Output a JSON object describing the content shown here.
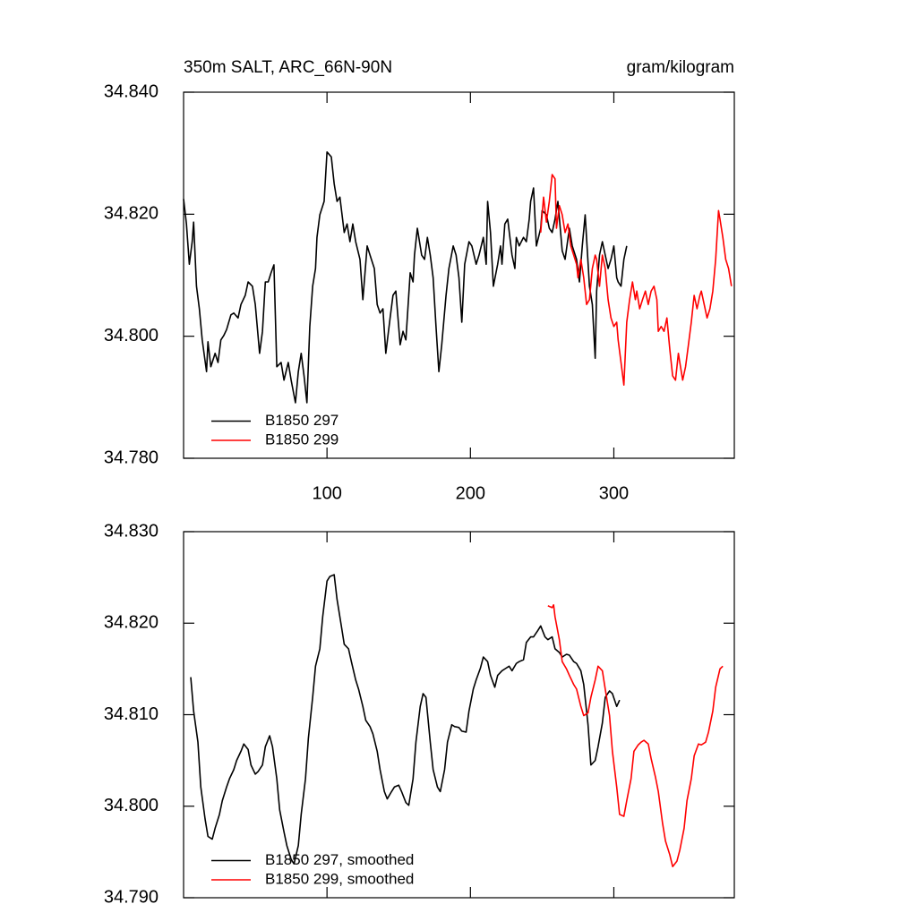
{
  "chart_data": [
    {
      "type": "line",
      "title": "350m SALT, ARC_66N-90N",
      "right_title": "gram/kilogram",
      "xlim": [
        0,
        384
      ],
      "xticks": [
        100,
        200,
        300
      ],
      "xtick_labels": true,
      "ylim": [
        34.78,
        34.84
      ],
      "yticks": [
        {
          "value": 34.78,
          "label": "34.780"
        },
        {
          "value": 34.8,
          "label": "34.800"
        },
        {
          "value": 34.82,
          "label": "34.820"
        },
        {
          "value": 34.84,
          "label": "34.840"
        }
      ],
      "legend": "lower left",
      "series": [
        {
          "name": "B1850 297",
          "color": "#000000",
          "x": [
            0,
            2,
            4,
            6,
            7,
            9,
            11,
            13,
            16,
            17,
            19,
            22,
            24,
            26,
            28,
            30,
            33,
            35,
            38,
            40,
            43,
            45,
            48,
            50,
            53,
            55,
            57,
            59,
            61,
            63,
            65,
            68,
            70,
            73,
            75,
            78,
            80,
            82,
            84,
            86,
            88,
            90,
            92,
            93,
            95,
            98,
            100,
            103,
            105,
            107,
            109,
            112,
            114,
            116,
            118,
            120,
            123,
            125,
            128,
            130,
            133,
            135,
            137,
            139,
            141,
            144,
            146,
            148,
            151,
            153,
            155,
            158,
            160,
            161,
            163,
            166,
            168,
            170,
            172,
            174,
            176,
            178,
            180,
            183,
            185,
            188,
            190,
            192,
            194,
            196,
            199,
            201,
            204,
            206,
            209,
            211,
            212,
            214,
            216,
            219,
            221,
            222,
            224,
            226,
            229,
            231,
            232,
            234,
            237,
            239,
            241,
            242,
            244,
            246,
            249,
            250,
            253,
            255,
            257,
            259,
            261,
            264,
            266,
            269,
            271,
            274,
            276,
            278,
            280,
            283,
            285,
            287,
            288,
            290,
            292,
            294,
            296,
            298,
            300,
            302,
            303,
            305,
            307,
            309
          ],
          "values": [
            34.8225,
            34.8184,
            34.8118,
            34.8155,
            34.8187,
            34.8082,
            34.8045,
            34.7994,
            34.7942,
            34.7991,
            34.795,
            34.7972,
            34.7957,
            34.7994,
            34.8001,
            34.8011,
            34.8035,
            34.8038,
            34.803,
            34.8052,
            34.8067,
            34.8089,
            34.8082,
            34.8052,
            34.7972,
            34.8008,
            34.8089,
            34.8089,
            34.8104,
            34.8117,
            34.795,
            34.7957,
            34.7928,
            34.7957,
            34.7928,
            34.7891,
            34.7942,
            34.7972,
            34.7935,
            34.7891,
            34.8016,
            34.8082,
            34.8111,
            34.8162,
            34.8199,
            34.8221,
            34.8302,
            34.8294,
            34.825,
            34.8221,
            34.8228,
            34.817,
            34.8184,
            34.8155,
            34.8184,
            34.8155,
            34.8126,
            34.806,
            34.8148,
            34.8133,
            34.8111,
            34.8052,
            34.8038,
            34.8045,
            34.7972,
            34.803,
            34.8067,
            34.8074,
            34.7986,
            34.8008,
            34.7994,
            34.8104,
            34.8089,
            34.8133,
            34.8177,
            34.8133,
            34.8126,
            34.8162,
            34.8133,
            34.8096,
            34.8016,
            34.7942,
            34.7986,
            34.8067,
            34.8111,
            34.8148,
            34.8133,
            34.8096,
            34.8023,
            34.8118,
            34.8155,
            34.8148,
            34.8118,
            34.8133,
            34.8162,
            34.8118,
            34.8221,
            34.817,
            34.8082,
            34.8118,
            34.8148,
            34.8118,
            34.8184,
            34.8192,
            34.8133,
            34.8111,
            34.8162,
            34.8148,
            34.8162,
            34.8155,
            34.8192,
            34.8221,
            34.8243,
            34.8148,
            34.8177,
            34.8206,
            34.8199,
            34.8177,
            34.817,
            34.8192,
            34.8221,
            34.814,
            34.8126,
            34.8177,
            34.8148,
            34.8126,
            34.8089,
            34.8148,
            34.8199,
            34.8082,
            34.8052,
            34.7964,
            34.8074,
            34.8133,
            34.8155,
            34.8133,
            34.8111,
            34.8126,
            34.8148,
            34.8096,
            34.8089,
            34.8082,
            34.8126,
            34.8148
          ]
        },
        {
          "name": "B1850 299",
          "color": "#ff0000",
          "x": [
            249,
            251,
            253,
            255,
            257,
            259,
            260,
            262,
            264,
            266,
            268,
            270,
            272,
            274,
            275,
            277,
            279,
            281,
            283,
            285,
            287,
            288,
            290,
            292,
            294,
            296,
            298,
            300,
            302,
            303,
            305,
            307,
            309,
            311,
            313,
            315,
            316,
            318,
            320,
            322,
            324,
            326,
            328,
            330,
            331,
            333,
            335,
            337,
            339,
            341,
            343,
            345,
            346,
            348,
            350,
            352,
            354,
            356,
            358,
            360,
            361,
            363,
            365,
            367,
            369,
            371,
            373,
            374,
            376,
            378,
            380,
            382
          ],
          "values": [
            34.817,
            34.8228,
            34.8187,
            34.8221,
            34.8265,
            34.8258,
            34.8177,
            34.8214,
            34.8199,
            34.817,
            34.8184,
            34.8148,
            34.8133,
            34.8118,
            34.8096,
            34.8126,
            34.8096,
            34.8052,
            34.806,
            34.8111,
            34.8133,
            34.8126,
            34.8082,
            34.8133,
            34.8111,
            34.806,
            34.803,
            34.8016,
            34.8023,
            34.7994,
            34.7957,
            34.792,
            34.8023,
            34.806,
            34.8089,
            34.806,
            34.8074,
            34.8045,
            34.806,
            34.8074,
            34.8052,
            34.8074,
            34.8082,
            34.806,
            34.8008,
            34.8016,
            34.8008,
            34.803,
            34.7979,
            34.7935,
            34.7928,
            34.7972,
            34.7957,
            34.7928,
            34.795,
            34.7986,
            34.8023,
            34.8067,
            34.8045,
            34.8067,
            34.8074,
            34.8052,
            34.803,
            34.8045,
            34.8074,
            34.8126,
            34.8206,
            34.8192,
            34.8162,
            34.8126,
            34.8111,
            34.8082
          ]
        }
      ]
    },
    {
      "type": "line",
      "xlim": [
        0,
        384
      ],
      "xticks": [
        100,
        200,
        300
      ],
      "xtick_labels": false,
      "ylim": [
        34.79,
        34.83
      ],
      "yticks": [
        {
          "value": 34.79,
          "label": "34.790"
        },
        {
          "value": 34.8,
          "label": "34.800"
        },
        {
          "value": 34.81,
          "label": "34.810"
        },
        {
          "value": 34.82,
          "label": "34.820"
        },
        {
          "value": 34.83,
          "label": "34.830"
        }
      ],
      "legend": "lower left",
      "series": [
        {
          "name": "B1850 297, smoothed",
          "color": "#000000",
          "x": [
            5,
            7,
            10,
            12,
            15,
            17,
            20,
            22,
            25,
            27,
            30,
            32,
            35,
            37,
            40,
            42,
            45,
            47,
            50,
            52,
            55,
            57,
            60,
            62,
            65,
            67,
            70,
            72,
            75,
            77,
            80,
            82,
            85,
            87,
            90,
            92,
            95,
            97,
            100,
            102,
            105,
            107,
            110,
            112,
            115,
            117,
            120,
            122,
            125,
            127,
            130,
            132,
            135,
            137,
            140,
            142,
            145,
            147,
            150,
            152,
            155,
            157,
            160,
            162,
            165,
            167,
            169,
            172,
            174,
            177,
            179,
            182,
            184,
            187,
            189,
            192,
            194,
            197,
            199,
            202,
            204,
            207,
            209,
            212,
            214,
            217,
            219,
            222,
            224,
            227,
            229,
            232,
            234,
            237,
            239,
            242,
            244,
            247,
            249,
            252,
            254,
            257,
            259,
            262,
            264,
            267,
            269,
            272,
            274,
            277,
            279,
            282,
            284,
            287,
            289,
            292,
            294,
            297,
            299,
            302,
            304
          ],
          "values": [
            34.8141,
            34.8104,
            34.807,
            34.8021,
            34.7986,
            34.7967,
            34.7964,
            34.7976,
            34.7991,
            34.8006,
            34.8021,
            34.803,
            34.804,
            34.805,
            34.806,
            34.8068,
            34.8062,
            34.8045,
            34.8035,
            34.8038,
            34.8045,
            34.8065,
            34.8077,
            34.8065,
            34.803,
            34.7996,
            34.7972,
            34.7957,
            34.7942,
            34.7937,
            34.7957,
            34.7991,
            34.803,
            34.8074,
            34.8119,
            34.8153,
            34.8172,
            34.8207,
            34.8246,
            34.8251,
            34.8253,
            34.8226,
            34.8197,
            34.8177,
            34.8172,
            34.8158,
            34.8138,
            34.8128,
            34.8109,
            34.8094,
            34.8087,
            34.8079,
            34.806,
            34.804,
            34.8016,
            34.8008,
            34.8016,
            34.8021,
            34.8023,
            34.8016,
            34.8004,
            34.8001,
            34.803,
            34.807,
            34.8109,
            34.8123,
            34.8119,
            34.807,
            34.804,
            34.8021,
            34.8016,
            34.804,
            34.807,
            34.8089,
            34.8087,
            34.8086,
            34.8082,
            34.8081,
            34.8104,
            34.8128,
            34.8138,
            34.8151,
            34.8163,
            34.8158,
            34.8143,
            34.813,
            34.8143,
            34.8148,
            34.815,
            34.8153,
            34.8148,
            34.8156,
            34.8158,
            34.816,
            34.8179,
            34.8185,
            34.8185,
            34.8192,
            34.8197,
            34.8185,
            34.8182,
            34.8185,
            34.8172,
            34.8168,
            34.8163,
            34.8166,
            34.8165,
            34.8158,
            34.8156,
            34.8148,
            34.8133,
            34.8089,
            34.8045,
            34.805,
            34.8065,
            34.8091,
            34.8119,
            34.8126,
            34.8123,
            34.8109,
            34.8116
          ]
        },
        {
          "name": "B1850 299, smoothed",
          "color": "#ff0000",
          "x": [
            254,
            257,
            258,
            259,
            262,
            264,
            267,
            269,
            272,
            274,
            277,
            279,
            282,
            284,
            287,
            289,
            292,
            294,
            297,
            299,
            302,
            304,
            307,
            309,
            312,
            314,
            317,
            319,
            321,
            324,
            326,
            329,
            331,
            334,
            336,
            339,
            341,
            344,
            346,
            349,
            351,
            354,
            356,
            359,
            361,
            364,
            366,
            369,
            371,
            374,
            376
          ],
          "values": [
            34.8219,
            34.8217,
            34.822,
            34.8207,
            34.8182,
            34.8158,
            34.815,
            34.8143,
            34.8133,
            34.8128,
            34.8109,
            34.8099,
            34.8102,
            34.8119,
            34.8138,
            34.8153,
            34.8148,
            34.8128,
            34.8099,
            34.806,
            34.8021,
            34.7991,
            34.7989,
            34.8006,
            34.803,
            34.806,
            34.8067,
            34.807,
            34.8072,
            34.8068,
            34.8052,
            34.8032,
            34.8016,
            34.7981,
            34.7962,
            34.7947,
            34.7934,
            34.794,
            34.7952,
            34.7976,
            34.8006,
            34.803,
            34.8055,
            34.8068,
            34.8067,
            34.807,
            34.8081,
            34.8104,
            34.813,
            34.815,
            34.8153
          ]
        }
      ]
    }
  ]
}
